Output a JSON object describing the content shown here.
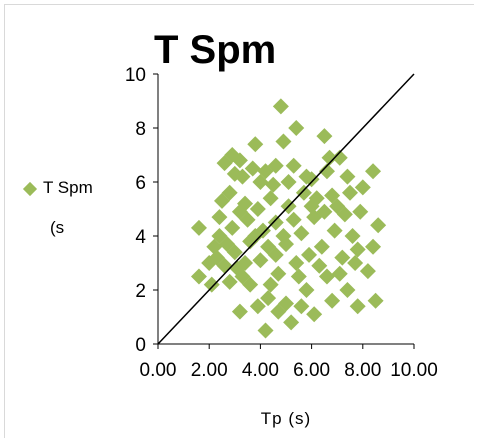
{
  "chart_data": {
    "type": "scatter",
    "title": "T Spm",
    "xlabel": "Tp (s)",
    "ylabel": "",
    "xlim": [
      0,
      10
    ],
    "ylim": [
      0,
      10
    ],
    "x_ticks": [
      "0.00",
      "2.00",
      "4.00",
      "6.00",
      "8.00",
      "10.00"
    ],
    "y_ticks": [
      "0",
      "2",
      "4",
      "6",
      "8",
      "10"
    ],
    "legend": {
      "position": "left",
      "line1": "T Spm",
      "line2": "(s"
    },
    "marker_color": "#9bbb59",
    "reference_line": {
      "x": [
        0,
        10
      ],
      "y": [
        0,
        10
      ],
      "color": "#000000"
    },
    "series": [
      {
        "name": "T Spm",
        "points": [
          [
            4.8,
            8.8
          ],
          [
            5.4,
            8.0
          ],
          [
            6.5,
            7.7
          ],
          [
            4.9,
            7.5
          ],
          [
            3.8,
            7.4
          ],
          [
            2.9,
            7.0
          ],
          [
            3.2,
            6.8
          ],
          [
            2.6,
            6.7
          ],
          [
            3.3,
            6.2
          ],
          [
            8.4,
            6.4
          ],
          [
            8.0,
            5.8
          ],
          [
            1.6,
            4.3
          ],
          [
            1.6,
            2.5
          ],
          [
            2.1,
            2.2
          ],
          [
            2.3,
            3.2
          ],
          [
            3.2,
            1.2
          ],
          [
            4.2,
            0.5
          ],
          [
            5.2,
            0.8
          ],
          [
            6.1,
            1.1
          ],
          [
            7.4,
            2.0
          ],
          [
            7.8,
            1.4
          ],
          [
            8.5,
            1.6
          ],
          [
            8.4,
            3.6
          ],
          [
            8.6,
            4.4
          ],
          [
            7.4,
            6.2
          ],
          [
            7.1,
            6.9
          ],
          [
            6.7,
            6.9
          ],
          [
            5.8,
            6.2
          ],
          [
            6.2,
            5.4
          ],
          [
            5.1,
            5.1
          ],
          [
            4.6,
            4.5
          ],
          [
            4.1,
            4.2
          ],
          [
            3.6,
            3.8
          ],
          [
            3.0,
            3.4
          ],
          [
            2.6,
            2.9
          ],
          [
            2.4,
            4.7
          ],
          [
            2.8,
            5.6
          ],
          [
            3.4,
            5.2
          ],
          [
            4.0,
            6.0
          ],
          [
            4.6,
            6.6
          ],
          [
            5.3,
            6.6
          ],
          [
            6.0,
            6.1
          ],
          [
            6.8,
            5.5
          ],
          [
            7.3,
            4.8
          ],
          [
            7.6,
            4.0
          ],
          [
            7.2,
            3.2
          ],
          [
            6.6,
            2.5
          ],
          [
            5.8,
            2.0
          ],
          [
            5.0,
            1.5
          ],
          [
            4.3,
            1.7
          ],
          [
            3.6,
            2.2
          ],
          [
            3.1,
            2.8
          ],
          [
            2.7,
            3.7
          ],
          [
            3.5,
            4.6
          ],
          [
            4.4,
            5.4
          ],
          [
            5.6,
            4.1
          ],
          [
            6.4,
            3.6
          ],
          [
            5.4,
            3.0
          ],
          [
            4.7,
            2.6
          ],
          [
            4.0,
            3.1
          ],
          [
            3.9,
            5.0
          ],
          [
            5.0,
            3.7
          ],
          [
            6.1,
            4.7
          ],
          [
            6.9,
            4.2
          ],
          [
            7.0,
            5.1
          ],
          [
            6.3,
            2.9
          ],
          [
            5.5,
            2.5
          ],
          [
            4.4,
            2.2
          ],
          [
            3.3,
            2.5
          ],
          [
            2.9,
            4.3
          ],
          [
            3.7,
            6.5
          ],
          [
            4.5,
            5.9
          ],
          [
            5.7,
            5.6
          ],
          [
            6.5,
            4.9
          ],
          [
            7.8,
            3.5
          ],
          [
            8.2,
            2.7
          ],
          [
            7.9,
            4.9
          ],
          [
            2.2,
            3.6
          ],
          [
            2.5,
            5.3
          ],
          [
            3.0,
            6.3
          ],
          [
            4.2,
            6.4
          ],
          [
            5.1,
            6.0
          ],
          [
            6.6,
            6.4
          ],
          [
            7.5,
            5.6
          ],
          [
            5.9,
            3.3
          ],
          [
            4.9,
            4.0
          ],
          [
            4.3,
            3.6
          ],
          [
            3.4,
            3.0
          ],
          [
            2.8,
            2.3
          ],
          [
            3.9,
            1.4
          ],
          [
            4.7,
            1.2
          ],
          [
            5.6,
            1.4
          ],
          [
            6.8,
            1.6
          ],
          [
            7.1,
            2.6
          ],
          [
            6.0,
            5.1
          ],
          [
            5.3,
            4.6
          ],
          [
            4.6,
            3.3
          ],
          [
            3.8,
            4.0
          ],
          [
            3.2,
            4.9
          ],
          [
            2.4,
            4.0
          ],
          [
            2.0,
            3.0
          ],
          [
            7.7,
            3.0
          ]
        ]
      }
    ]
  }
}
